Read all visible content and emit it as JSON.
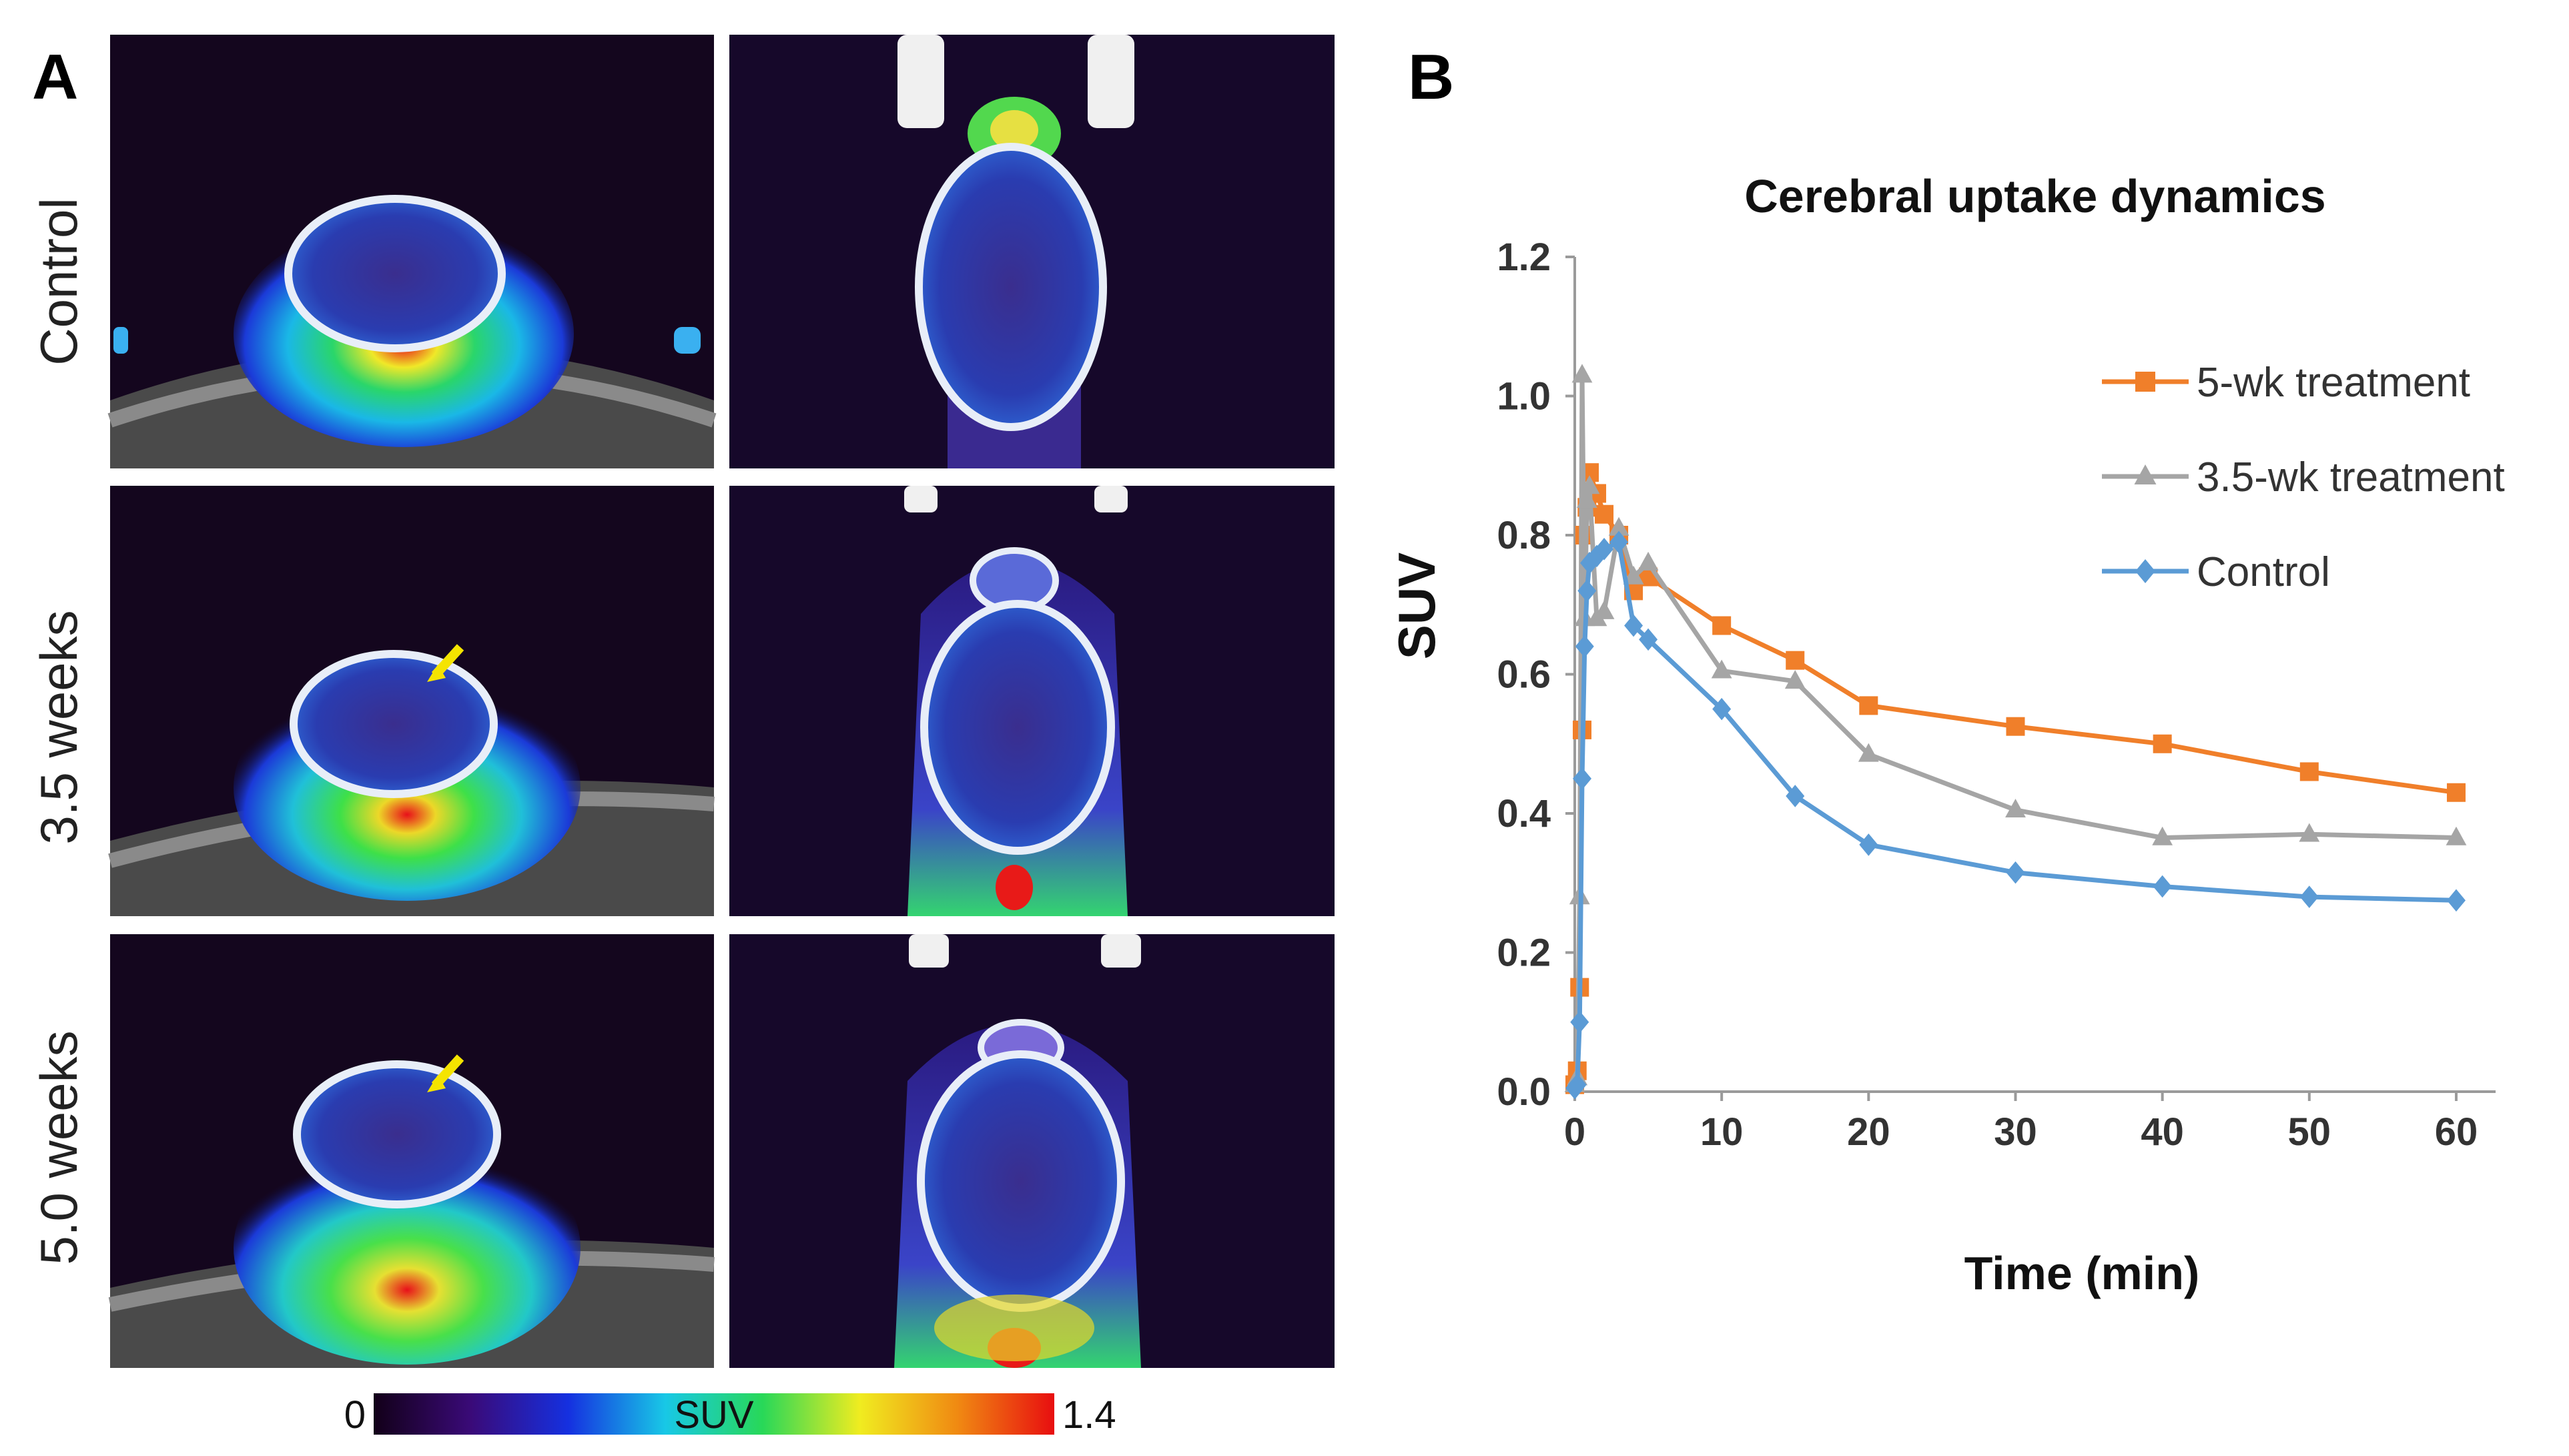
{
  "panel_a": {
    "label": "A",
    "row_labels": [
      "Control",
      "3.5 weeks",
      "5.0 weeks"
    ],
    "colorbar": {
      "min_label": "0",
      "max_label": "1.4",
      "title": "SUV",
      "colors": [
        "#120018",
        "#3a0a78",
        "#1530e0",
        "#18c8e6",
        "#28d858",
        "#f0ec20",
        "#f08a12",
        "#e80e10"
      ]
    },
    "arrow_color": "#f5e400"
  },
  "panel_b": {
    "label": "B"
  },
  "chart_data": {
    "type": "line",
    "title": "Cerebral uptake dynamics",
    "xlabel": "Time (min)",
    "ylabel": "SUV",
    "xlim": [
      0,
      62
    ],
    "ylim": [
      0,
      1.2
    ],
    "xticks": [
      0,
      10,
      20,
      30,
      40,
      50,
      60
    ],
    "yticks": [
      0.0,
      0.2,
      0.4,
      0.6,
      0.8,
      1.0,
      1.2
    ],
    "ytick_labels": [
      "0.0",
      "0.2",
      "0.4",
      "0.6",
      "0.8",
      "1.0",
      "1.2"
    ],
    "grid": false,
    "legend_position": "top-right",
    "series": [
      {
        "name": "5-wk treatment",
        "color": "#f07f2a",
        "marker": "square",
        "x": [
          0,
          0.17,
          0.33,
          0.5,
          0.67,
          0.83,
          1.0,
          1.5,
          2.0,
          3.0,
          4.0,
          5.0,
          10,
          15,
          20,
          30,
          40,
          50,
          60
        ],
        "y": [
          0.01,
          0.03,
          0.15,
          0.52,
          0.8,
          0.84,
          0.89,
          0.86,
          0.83,
          0.8,
          0.72,
          0.74,
          0.67,
          0.62,
          0.555,
          0.525,
          0.5,
          0.46,
          0.43
        ]
      },
      {
        "name": "3.5-wk treatment",
        "color": "#a5a5a5",
        "marker": "triangle",
        "x": [
          0,
          0.17,
          0.33,
          0.5,
          0.67,
          0.83,
          1.0,
          1.5,
          2.0,
          3.0,
          4.0,
          5.0,
          10,
          15,
          20,
          30,
          40,
          50,
          60
        ],
        "y": [
          0.01,
          0.02,
          0.28,
          1.03,
          0.68,
          0.85,
          0.87,
          0.68,
          0.69,
          0.81,
          0.74,
          0.76,
          0.605,
          0.59,
          0.485,
          0.405,
          0.365,
          0.37,
          0.365
        ]
      },
      {
        "name": "Control",
        "color": "#5b9bd5",
        "marker": "diamond",
        "x": [
          0,
          0.17,
          0.33,
          0.5,
          0.67,
          0.83,
          1.0,
          1.5,
          2.0,
          3.0,
          4.0,
          5.0,
          10,
          15,
          20,
          30,
          40,
          50,
          60
        ],
        "y": [
          0.005,
          0.01,
          0.1,
          0.45,
          0.64,
          0.72,
          0.76,
          0.77,
          0.78,
          0.79,
          0.67,
          0.65,
          0.55,
          0.425,
          0.355,
          0.315,
          0.295,
          0.28,
          0.275
        ]
      }
    ]
  }
}
